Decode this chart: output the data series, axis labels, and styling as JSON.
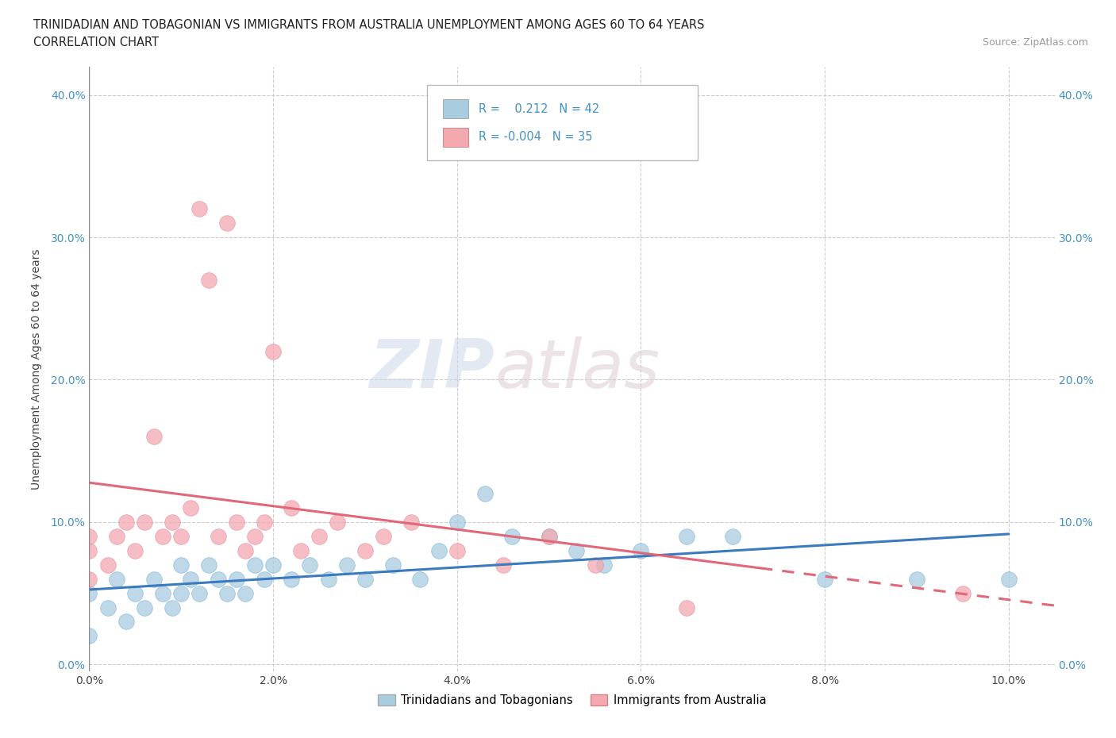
{
  "title_line1": "TRINIDADIAN AND TOBAGONIAN VS IMMIGRANTS FROM AUSTRALIA UNEMPLOYMENT AMONG AGES 60 TO 64 YEARS",
  "title_line2": "CORRELATION CHART",
  "source_text": "Source: ZipAtlas.com",
  "ylabel": "Unemployment Among Ages 60 to 64 years",
  "xlim": [
    0.0,
    0.105
  ],
  "ylim": [
    -0.005,
    0.42
  ],
  "xticks": [
    0.0,
    0.02,
    0.04,
    0.06,
    0.08,
    0.1
  ],
  "yticks": [
    0.0,
    0.1,
    0.2,
    0.3,
    0.4
  ],
  "xtick_labels": [
    "0.0%",
    "2.0%",
    "4.0%",
    "6.0%",
    "8.0%",
    "10.0%"
  ],
  "ytick_labels": [
    "0.0%",
    "10.0%",
    "20.0%",
    "30.0%",
    "40.0%"
  ],
  "r1": 0.212,
  "n1": 42,
  "r2": -0.004,
  "n2": 35,
  "color_blue": "#a8cce0",
  "color_pink": "#f4a8b0",
  "color_blue_line": "#3a7abf",
  "color_pink_line": "#e06878",
  "blue_scatter_x": [
    0.0,
    0.0,
    0.002,
    0.003,
    0.004,
    0.005,
    0.006,
    0.007,
    0.008,
    0.009,
    0.01,
    0.01,
    0.011,
    0.012,
    0.013,
    0.014,
    0.015,
    0.016,
    0.017,
    0.018,
    0.019,
    0.02,
    0.022,
    0.024,
    0.026,
    0.028,
    0.03,
    0.033,
    0.036,
    0.038,
    0.04,
    0.043,
    0.046,
    0.05,
    0.053,
    0.056,
    0.06,
    0.065,
    0.07,
    0.08,
    0.09,
    0.1
  ],
  "blue_scatter_y": [
    0.02,
    0.05,
    0.04,
    0.06,
    0.03,
    0.05,
    0.04,
    0.06,
    0.05,
    0.04,
    0.07,
    0.05,
    0.06,
    0.05,
    0.07,
    0.06,
    0.05,
    0.06,
    0.05,
    0.07,
    0.06,
    0.07,
    0.06,
    0.07,
    0.06,
    0.07,
    0.06,
    0.07,
    0.06,
    0.08,
    0.1,
    0.12,
    0.09,
    0.09,
    0.08,
    0.07,
    0.08,
    0.09,
    0.09,
    0.06,
    0.06,
    0.06
  ],
  "pink_scatter_x": [
    0.0,
    0.0,
    0.0,
    0.002,
    0.003,
    0.004,
    0.005,
    0.006,
    0.007,
    0.008,
    0.009,
    0.01,
    0.011,
    0.012,
    0.013,
    0.014,
    0.015,
    0.016,
    0.017,
    0.018,
    0.019,
    0.02,
    0.022,
    0.023,
    0.025,
    0.027,
    0.03,
    0.032,
    0.035,
    0.04,
    0.045,
    0.05,
    0.055,
    0.065,
    0.095
  ],
  "pink_scatter_y": [
    0.06,
    0.08,
    0.09,
    0.07,
    0.09,
    0.1,
    0.08,
    0.1,
    0.16,
    0.09,
    0.1,
    0.09,
    0.11,
    0.32,
    0.27,
    0.09,
    0.31,
    0.1,
    0.08,
    0.09,
    0.1,
    0.22,
    0.11,
    0.08,
    0.09,
    0.1,
    0.08,
    0.09,
    0.1,
    0.08,
    0.07,
    0.09,
    0.07,
    0.04,
    0.05
  ]
}
